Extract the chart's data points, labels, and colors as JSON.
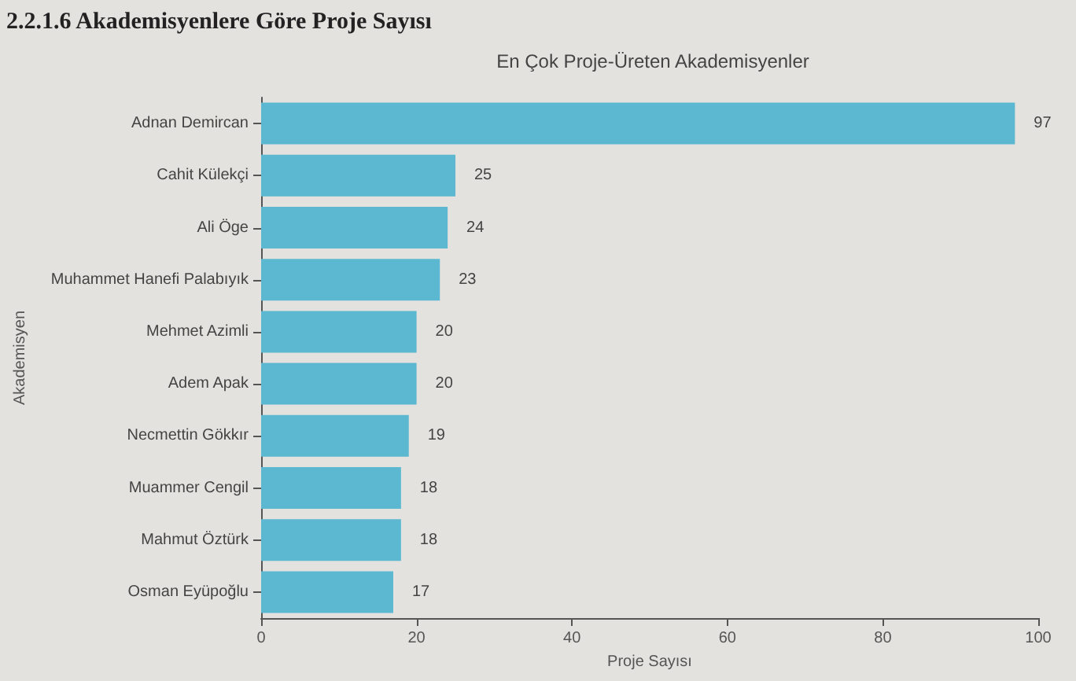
{
  "chart_data": {
    "type": "bar",
    "orientation": "horizontal",
    "title": "2.2.1.6 Akademisyenlere Göre Proje Sayısı",
    "subtitle": "En Çok Proje-Üreten Akademisyenler",
    "xlabel": "Proje Sayısı",
    "ylabel": "Akademisyen",
    "categories": [
      "Adnan Demircan",
      "Cahit Külekçi",
      "Ali Öge",
      "Muhammet Hanefi Palabıyık",
      "Mehmet Azimli",
      "Adem Apak",
      "Necmettin Gökkır",
      "Muammer Cengil",
      "Mahmut Öztürk",
      "Osman Eyüpoğlu"
    ],
    "values": [
      97,
      25,
      24,
      23,
      20,
      20,
      19,
      18,
      18,
      17
    ],
    "color": "#5bb8d0",
    "xlim": [
      0,
      100
    ],
    "xticks": [
      0,
      20,
      40,
      60,
      80,
      100
    ],
    "data_labels": true,
    "grid": false
  }
}
